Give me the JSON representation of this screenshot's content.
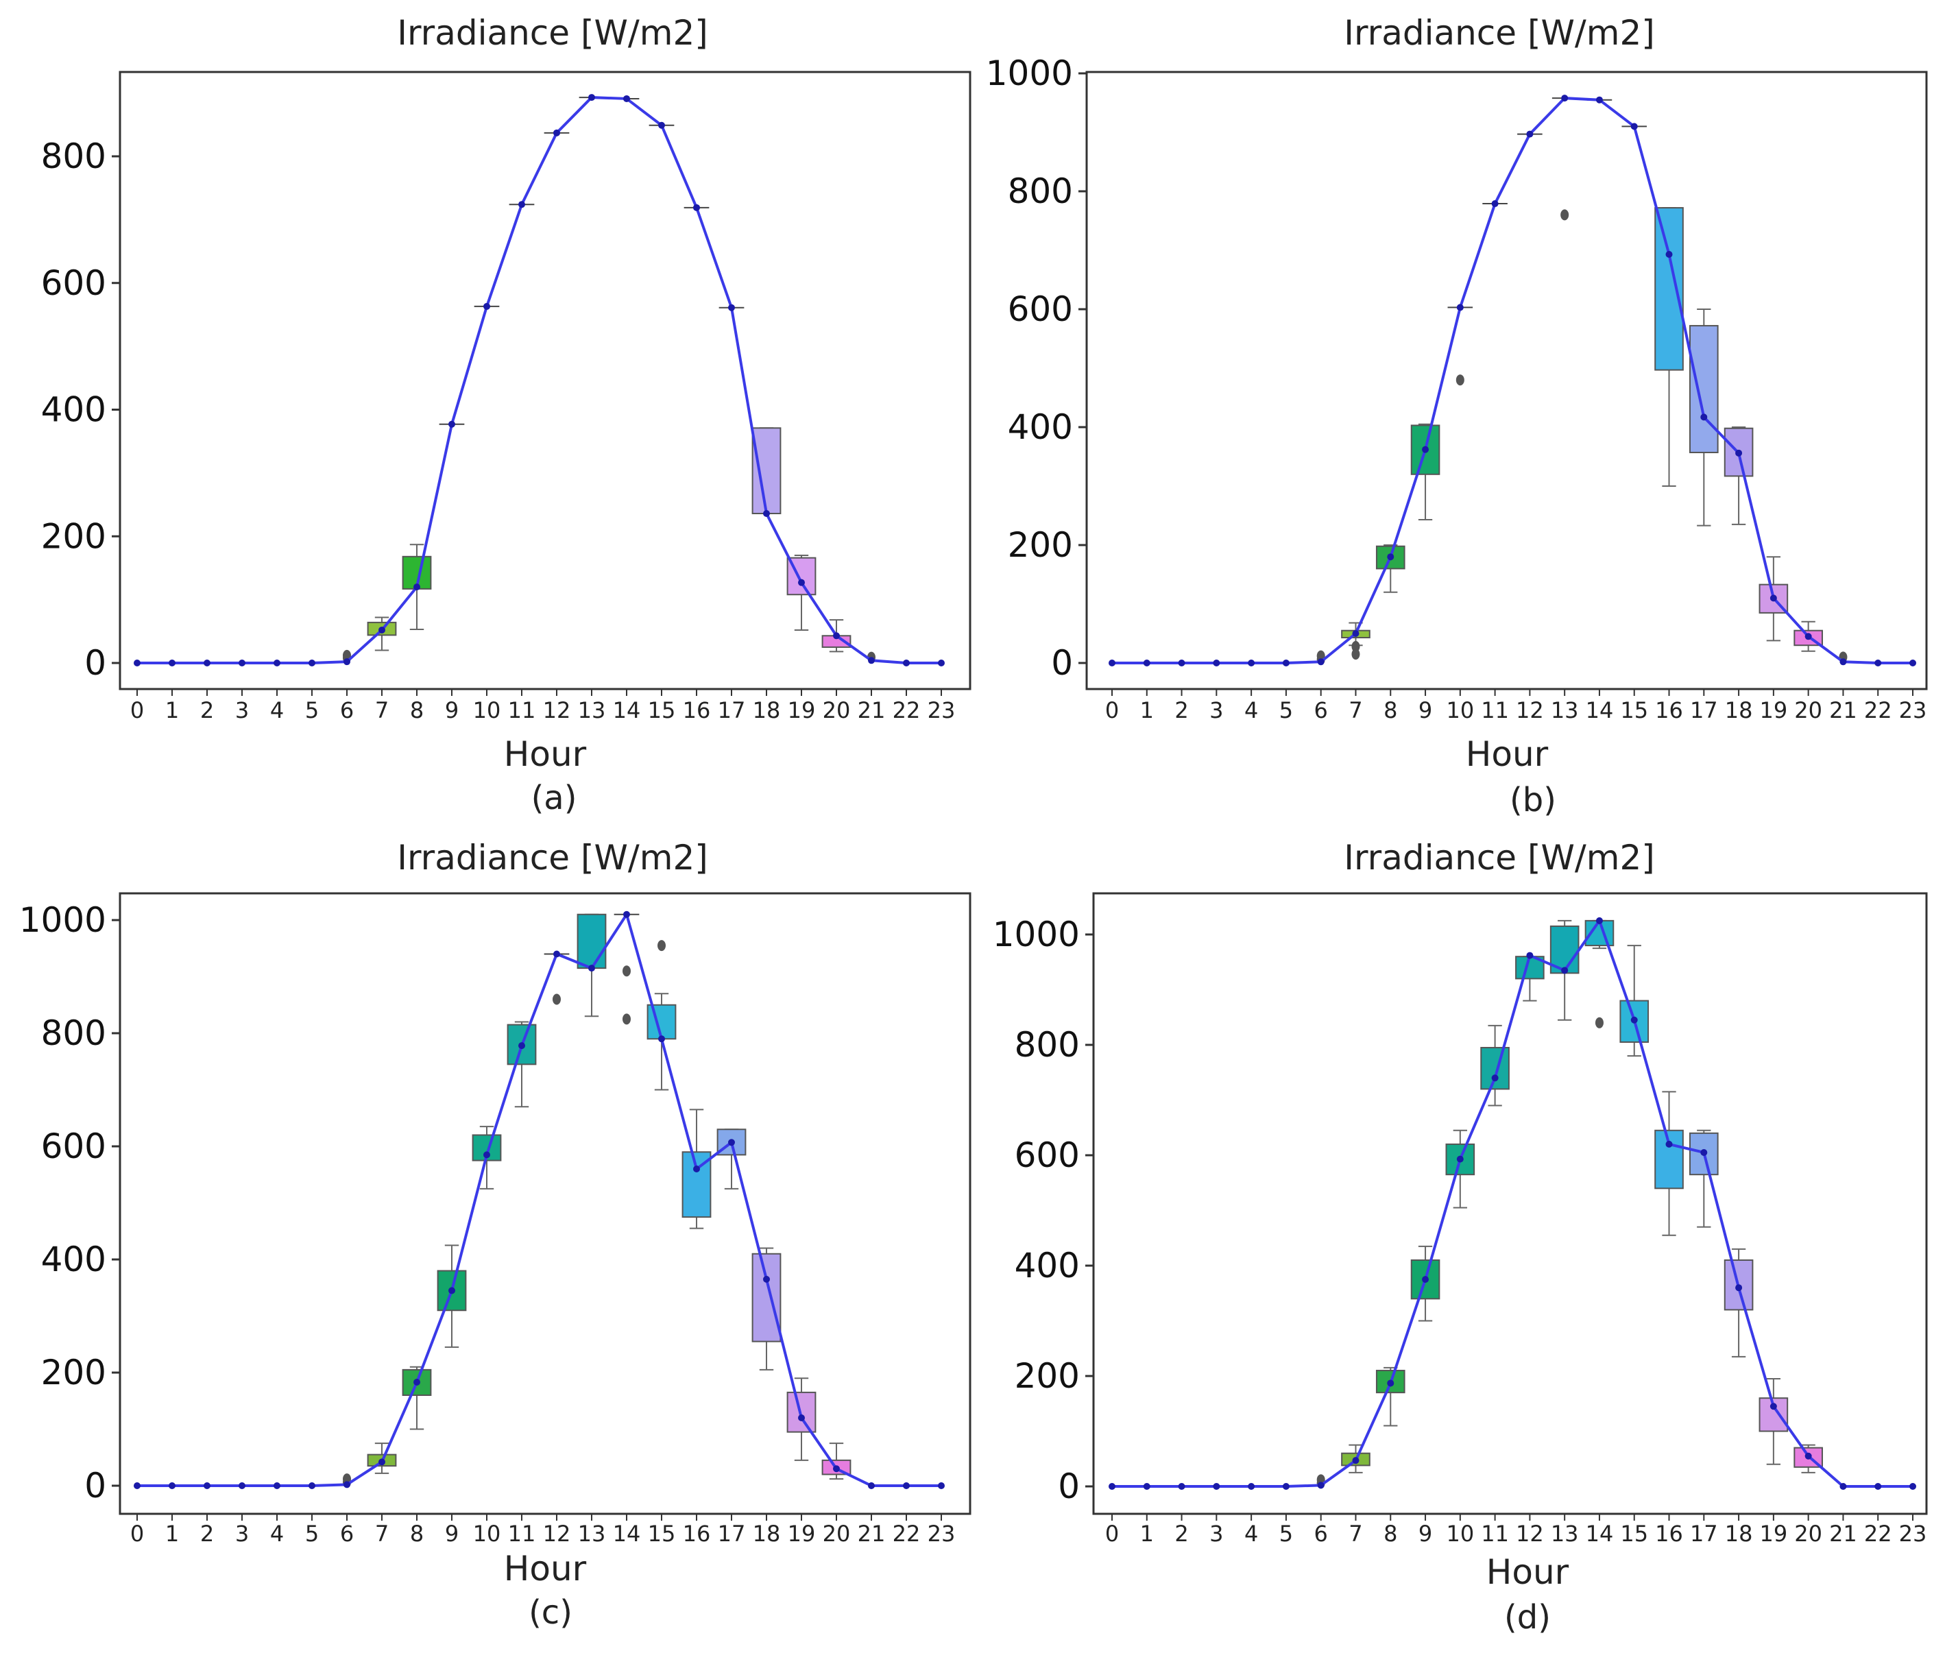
{
  "figure": {
    "panels": [
      "(a)",
      "(b)",
      "(c)",
      "(d)"
    ]
  },
  "chart_data": [
    {
      "type": "box",
      "panel": "(a)",
      "title": "Irradiance [W/m2]",
      "xlabel": "Hour",
      "ylabel": "",
      "categories": [
        "0",
        "1",
        "2",
        "3",
        "4",
        "5",
        "6",
        "7",
        "8",
        "9",
        "10",
        "11",
        "12",
        "13",
        "14",
        "15",
        "16",
        "17",
        "18",
        "19",
        "20",
        "21",
        "22",
        "23"
      ],
      "ylim": [
        -50,
        930
      ],
      "yticks": [
        0,
        200,
        400,
        600,
        800
      ],
      "mean_line": [
        0,
        0,
        0,
        0,
        0,
        0,
        2,
        52,
        120,
        377,
        563,
        724,
        837,
        893,
        891,
        849,
        719,
        561,
        236,
        127,
        43,
        4,
        0,
        0
      ],
      "boxes": [
        {
          "x": 7,
          "q1": 44,
          "q3": 64,
          "lo": 20,
          "hi": 72,
          "color": "#8fc13f"
        },
        {
          "x": 8,
          "q1": 117,
          "q3": 168,
          "lo": 53,
          "hi": 187,
          "color": "#2db532"
        },
        {
          "x": 18,
          "q1": 236,
          "q3": 371,
          "lo": 236,
          "hi": 371,
          "color": "#b7a7ee"
        },
        {
          "x": 19,
          "q1": 108,
          "q3": 166,
          "lo": 52,
          "hi": 170,
          "color": "#d79df0"
        },
        {
          "x": 20,
          "q1": 25,
          "q3": 43,
          "lo": 18,
          "hi": 68,
          "color": "#e67ddf"
        }
      ],
      "fliers": [
        {
          "x": 6,
          "y": 12
        },
        {
          "x": 6,
          "y": 8
        },
        {
          "x": 21,
          "y": 9
        }
      ]
    },
    {
      "type": "box",
      "panel": "(b)",
      "title": "Irradiance [W/m2]",
      "xlabel": "Hour",
      "ylabel": "",
      "categories": [
        "0",
        "1",
        "2",
        "3",
        "4",
        "5",
        "6",
        "7",
        "8",
        "9",
        "10",
        "11",
        "12",
        "13",
        "14",
        "15",
        "16",
        "17",
        "18",
        "19",
        "20",
        "21",
        "22",
        "23"
      ],
      "ylim": [
        -50,
        1000
      ],
      "yticks": [
        0,
        200,
        400,
        600,
        800,
        1000
      ],
      "mean_line": [
        0,
        0,
        0,
        0,
        0,
        0,
        2,
        50,
        180,
        362,
        603,
        779,
        897,
        958,
        955,
        910,
        693,
        417,
        356,
        110,
        45,
        2,
        0,
        0
      ],
      "boxes": [
        {
          "x": 7,
          "q1": 43,
          "q3": 55,
          "lo": 30,
          "hi": 68,
          "color": "#8fc13f"
        },
        {
          "x": 8,
          "q1": 160,
          "q3": 198,
          "lo": 120,
          "hi": 200,
          "color": "#2aa84a"
        },
        {
          "x": 9,
          "q1": 320,
          "q3": 403,
          "lo": 243,
          "hi": 405,
          "color": "#16a86a"
        },
        {
          "x": 16,
          "q1": 497,
          "q3": 772,
          "lo": 300,
          "hi": 772,
          "color": "#3eb1e6"
        },
        {
          "x": 17,
          "q1": 357,
          "q3": 572,
          "lo": 233,
          "hi": 600,
          "color": "#92a9ec"
        },
        {
          "x": 18,
          "q1": 317,
          "q3": 398,
          "lo": 235,
          "hi": 400,
          "color": "#b1a0ec"
        },
        {
          "x": 19,
          "q1": 85,
          "q3": 133,
          "lo": 38,
          "hi": 180,
          "color": "#d19ae8"
        },
        {
          "x": 20,
          "q1": 30,
          "q3": 55,
          "lo": 20,
          "hi": 70,
          "color": "#e67ddf"
        }
      ],
      "fliers": [
        {
          "x": 6,
          "y": 12
        },
        {
          "x": 6,
          "y": 6
        },
        {
          "x": 7,
          "y": 28
        },
        {
          "x": 7,
          "y": 15
        },
        {
          "x": 10,
          "y": 480
        },
        {
          "x": 13,
          "y": 760
        },
        {
          "x": 21,
          "y": 10
        }
      ]
    },
    {
      "type": "box",
      "panel": "(c)",
      "title": "Irradiance [W/m2]",
      "xlabel": "Hour",
      "ylabel": "",
      "categories": [
        "0",
        "1",
        "2",
        "3",
        "4",
        "5",
        "6",
        "7",
        "8",
        "9",
        "10",
        "11",
        "12",
        "13",
        "14",
        "15",
        "16",
        "17",
        "18",
        "19",
        "20",
        "21",
        "22",
        "23"
      ],
      "ylim": [
        -50,
        1060
      ],
      "yticks": [
        0,
        200,
        400,
        600,
        800,
        1000
      ],
      "mean_line": [
        0,
        0,
        0,
        0,
        0,
        0,
        2,
        42,
        183,
        345,
        585,
        778,
        940,
        915,
        1010,
        790,
        560,
        607,
        365,
        120,
        30,
        0,
        0,
        0
      ],
      "boxes": [
        {
          "x": 7,
          "q1": 35,
          "q3": 55,
          "lo": 22,
          "hi": 75,
          "color": "#7fb83c"
        },
        {
          "x": 8,
          "q1": 160,
          "q3": 205,
          "lo": 100,
          "hi": 210,
          "color": "#2aa84a"
        },
        {
          "x": 9,
          "q1": 310,
          "q3": 380,
          "lo": 245,
          "hi": 425,
          "color": "#13a56a"
        },
        {
          "x": 10,
          "q1": 575,
          "q3": 620,
          "lo": 525,
          "hi": 635,
          "color": "#12a98a"
        },
        {
          "x": 11,
          "q1": 745,
          "q3": 815,
          "lo": 670,
          "hi": 820,
          "color": "#16a9a0"
        },
        {
          "x": 13,
          "q1": 915,
          "q3": 1010,
          "lo": 830,
          "hi": 1010,
          "color": "#14a8b2"
        },
        {
          "x": 15,
          "q1": 790,
          "q3": 850,
          "lo": 700,
          "hi": 870,
          "color": "#2db5d8"
        },
        {
          "x": 16,
          "q1": 475,
          "q3": 590,
          "lo": 455,
          "hi": 665,
          "color": "#3bb0e5"
        },
        {
          "x": 17,
          "q1": 585,
          "q3": 630,
          "lo": 525,
          "hi": 630,
          "color": "#84a8ea"
        },
        {
          "x": 18,
          "q1": 255,
          "q3": 410,
          "lo": 205,
          "hi": 420,
          "color": "#b1a0ec"
        },
        {
          "x": 19,
          "q1": 95,
          "q3": 165,
          "lo": 45,
          "hi": 190,
          "color": "#d19ae8"
        },
        {
          "x": 20,
          "q1": 20,
          "q3": 45,
          "lo": 12,
          "hi": 75,
          "color": "#e67ddf"
        }
      ],
      "fliers": [
        {
          "x": 6,
          "y": 12
        },
        {
          "x": 6,
          "y": 6
        },
        {
          "x": 12,
          "y": 860
        },
        {
          "x": 14,
          "y": 910
        },
        {
          "x": 14,
          "y": 825
        },
        {
          "x": 15,
          "y": 955
        }
      ]
    },
    {
      "type": "box",
      "panel": "(d)",
      "title": "Irradiance [W/m2]",
      "xlabel": "Hour",
      "ylabel": "",
      "categories": [
        "0",
        "1",
        "2",
        "3",
        "4",
        "5",
        "6",
        "7",
        "8",
        "9",
        "10",
        "11",
        "12",
        "13",
        "14",
        "15",
        "16",
        "17",
        "18",
        "19",
        "20",
        "21",
        "22",
        "23"
      ],
      "ylim": [
        -50,
        1060
      ],
      "yticks": [
        0,
        200,
        400,
        600,
        800,
        1000
      ],
      "mean_line": [
        0,
        0,
        0,
        0,
        0,
        0,
        2,
        47,
        187,
        375,
        593,
        740,
        962,
        935,
        1025,
        845,
        620,
        605,
        360,
        145,
        55,
        0,
        0,
        0
      ],
      "boxes": [
        {
          "x": 7,
          "q1": 38,
          "q3": 60,
          "lo": 25,
          "hi": 75,
          "color": "#7fb83c"
        },
        {
          "x": 8,
          "q1": 170,
          "q3": 210,
          "lo": 110,
          "hi": 215,
          "color": "#2aa84a"
        },
        {
          "x": 9,
          "q1": 340,
          "q3": 410,
          "lo": 300,
          "hi": 435,
          "color": "#13a56a"
        },
        {
          "x": 10,
          "q1": 565,
          "q3": 620,
          "lo": 505,
          "hi": 645,
          "color": "#12a98a"
        },
        {
          "x": 11,
          "q1": 720,
          "q3": 795,
          "lo": 690,
          "hi": 835,
          "color": "#16a9a0"
        },
        {
          "x": 12,
          "q1": 920,
          "q3": 960,
          "lo": 880,
          "hi": 960,
          "color": "#13a8a6"
        },
        {
          "x": 13,
          "q1": 930,
          "q3": 1015,
          "lo": 845,
          "hi": 1025,
          "color": "#14a8b2"
        },
        {
          "x": 14,
          "q1": 980,
          "q3": 1025,
          "lo": 975,
          "hi": 1025,
          "color": "#1fb0c8"
        },
        {
          "x": 15,
          "q1": 805,
          "q3": 880,
          "lo": 780,
          "hi": 980,
          "color": "#2db5d8"
        },
        {
          "x": 16,
          "q1": 540,
          "q3": 645,
          "lo": 455,
          "hi": 715,
          "color": "#3bb0e5"
        },
        {
          "x": 17,
          "q1": 565,
          "q3": 640,
          "lo": 470,
          "hi": 645,
          "color": "#84a8ea"
        },
        {
          "x": 18,
          "q1": 320,
          "q3": 410,
          "lo": 235,
          "hi": 430,
          "color": "#b1a0ec"
        },
        {
          "x": 19,
          "q1": 100,
          "q3": 160,
          "lo": 40,
          "hi": 195,
          "color": "#d19ae8"
        },
        {
          "x": 20,
          "q1": 35,
          "q3": 70,
          "lo": 25,
          "hi": 75,
          "color": "#e67ddf"
        }
      ],
      "fliers": [
        {
          "x": 6,
          "y": 12
        },
        {
          "x": 6,
          "y": 6
        },
        {
          "x": 14,
          "y": 840
        }
      ]
    }
  ]
}
